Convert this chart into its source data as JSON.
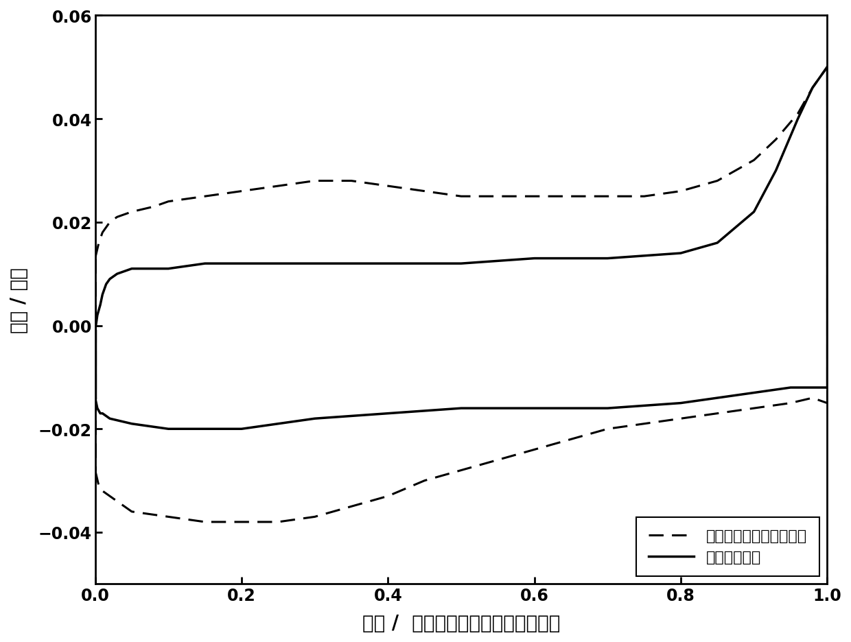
{
  "title": "",
  "xlabel": "电位 /  伏特（相对于饱和甘汞电极）",
  "ylabel": "电流 / 毫安",
  "xlim": [
    0.0,
    1.0
  ],
  "ylim": [
    -0.05,
    0.06
  ],
  "yticks": [
    -0.04,
    -0.02,
    0.0,
    0.02,
    0.04,
    0.06
  ],
  "xticks": [
    0.0,
    0.2,
    0.4,
    0.6,
    0.8,
    1.0
  ],
  "legend_dashed": "高温热处理后的膨化石墨",
  "legend_solid": "原始膨化石墨",
  "dashed_upper_x": [
    0.0,
    0.005,
    0.01,
    0.02,
    0.03,
    0.05,
    0.08,
    0.1,
    0.15,
    0.2,
    0.25,
    0.3,
    0.35,
    0.4,
    0.45,
    0.5,
    0.55,
    0.6,
    0.65,
    0.7,
    0.75,
    0.8,
    0.85,
    0.9,
    0.93,
    0.96,
    0.98,
    1.0
  ],
  "dashed_upper_y": [
    0.013,
    0.016,
    0.018,
    0.02,
    0.021,
    0.022,
    0.023,
    0.024,
    0.025,
    0.026,
    0.027,
    0.028,
    0.028,
    0.027,
    0.026,
    0.025,
    0.025,
    0.025,
    0.025,
    0.025,
    0.025,
    0.026,
    0.028,
    0.032,
    0.036,
    0.041,
    0.046,
    0.05
  ],
  "dashed_lower_x": [
    0.0,
    0.005,
    0.01,
    0.02,
    0.05,
    0.1,
    0.15,
    0.2,
    0.25,
    0.3,
    0.35,
    0.4,
    0.45,
    0.5,
    0.55,
    0.6,
    0.65,
    0.7,
    0.75,
    0.8,
    0.85,
    0.9,
    0.95,
    0.98,
    1.0
  ],
  "dashed_lower_y": [
    -0.028,
    -0.031,
    -0.032,
    -0.033,
    -0.036,
    -0.037,
    -0.038,
    -0.038,
    -0.038,
    -0.037,
    -0.035,
    -0.033,
    -0.03,
    -0.028,
    -0.026,
    -0.024,
    -0.022,
    -0.02,
    -0.019,
    -0.018,
    -0.017,
    -0.016,
    -0.015,
    -0.014,
    -0.015
  ],
  "solid_upper_x": [
    0.0,
    0.003,
    0.007,
    0.01,
    0.015,
    0.02,
    0.03,
    0.05,
    0.08,
    0.1,
    0.15,
    0.2,
    0.25,
    0.3,
    0.4,
    0.5,
    0.6,
    0.7,
    0.8,
    0.85,
    0.9,
    0.93,
    0.96,
    0.98,
    1.0
  ],
  "solid_upper_y": [
    -0.001,
    0.002,
    0.004,
    0.006,
    0.008,
    0.009,
    0.01,
    0.011,
    0.011,
    0.011,
    0.012,
    0.012,
    0.012,
    0.012,
    0.012,
    0.012,
    0.013,
    0.013,
    0.014,
    0.016,
    0.022,
    0.03,
    0.04,
    0.046,
    0.05
  ],
  "solid_lower_x": [
    0.0,
    0.003,
    0.007,
    0.01,
    0.02,
    0.05,
    0.1,
    0.15,
    0.2,
    0.25,
    0.3,
    0.4,
    0.5,
    0.6,
    0.7,
    0.8,
    0.85,
    0.9,
    0.95,
    0.98,
    1.0
  ],
  "solid_lower_y": [
    -0.014,
    -0.016,
    -0.017,
    -0.017,
    -0.018,
    -0.019,
    -0.02,
    -0.02,
    -0.02,
    -0.019,
    -0.018,
    -0.017,
    -0.016,
    -0.016,
    -0.016,
    -0.015,
    -0.014,
    -0.013,
    -0.012,
    -0.012,
    -0.012
  ],
  "line_color": "#000000",
  "bg_color": "#ffffff",
  "plot_bg_color": "#ffffff",
  "linewidth_solid": 2.5,
  "linewidth_dashed": 2.2,
  "fontsize_label": 20,
  "fontsize_tick": 17,
  "fontsize_legend": 16
}
